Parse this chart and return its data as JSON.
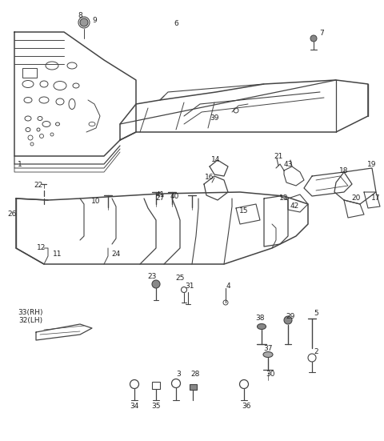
{
  "bg_color": "#ffffff",
  "line_color": "#444444",
  "text_color": "#222222",
  "font_size": 6.5
}
